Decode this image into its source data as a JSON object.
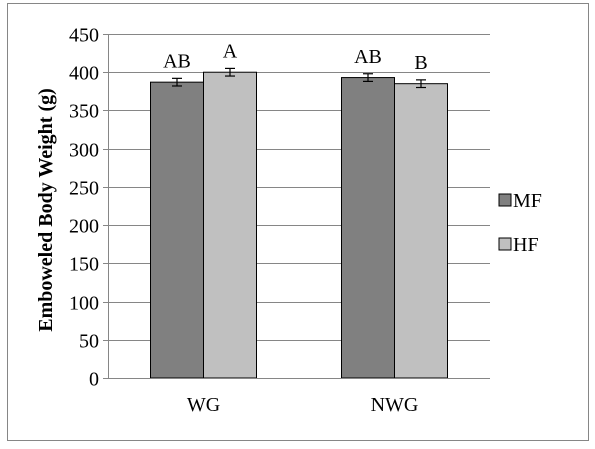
{
  "colors": {
    "MF": "#808080",
    "HF": "#c0c0c0",
    "grid": "#868686",
    "axis": "#868686",
    "border": "#868686",
    "bar_stroke": "#000000"
  },
  "chart_data": {
    "type": "bar",
    "ylabel": "Emboweled Body Weight (g)",
    "xlabel": "",
    "title": "",
    "ylim": [
      0,
      450
    ],
    "yticks": [
      0,
      50,
      100,
      150,
      200,
      250,
      300,
      350,
      400,
      450
    ],
    "ytick_labels": [
      "0",
      "50",
      "100",
      "150",
      "200",
      "250",
      "300",
      "350",
      "400",
      "450"
    ],
    "categories": [
      "WG",
      "NWG"
    ],
    "series": [
      {
        "name": "MF",
        "values": [
          387,
          393
        ],
        "errors": [
          5,
          5
        ],
        "sig_labels": [
          "AB",
          "AB"
        ]
      },
      {
        "name": "HF",
        "values": [
          400,
          385
        ],
        "errors": [
          5,
          5
        ],
        "sig_labels": [
          "A",
          "B"
        ]
      }
    ],
    "grid": true,
    "legend_position": "right"
  }
}
